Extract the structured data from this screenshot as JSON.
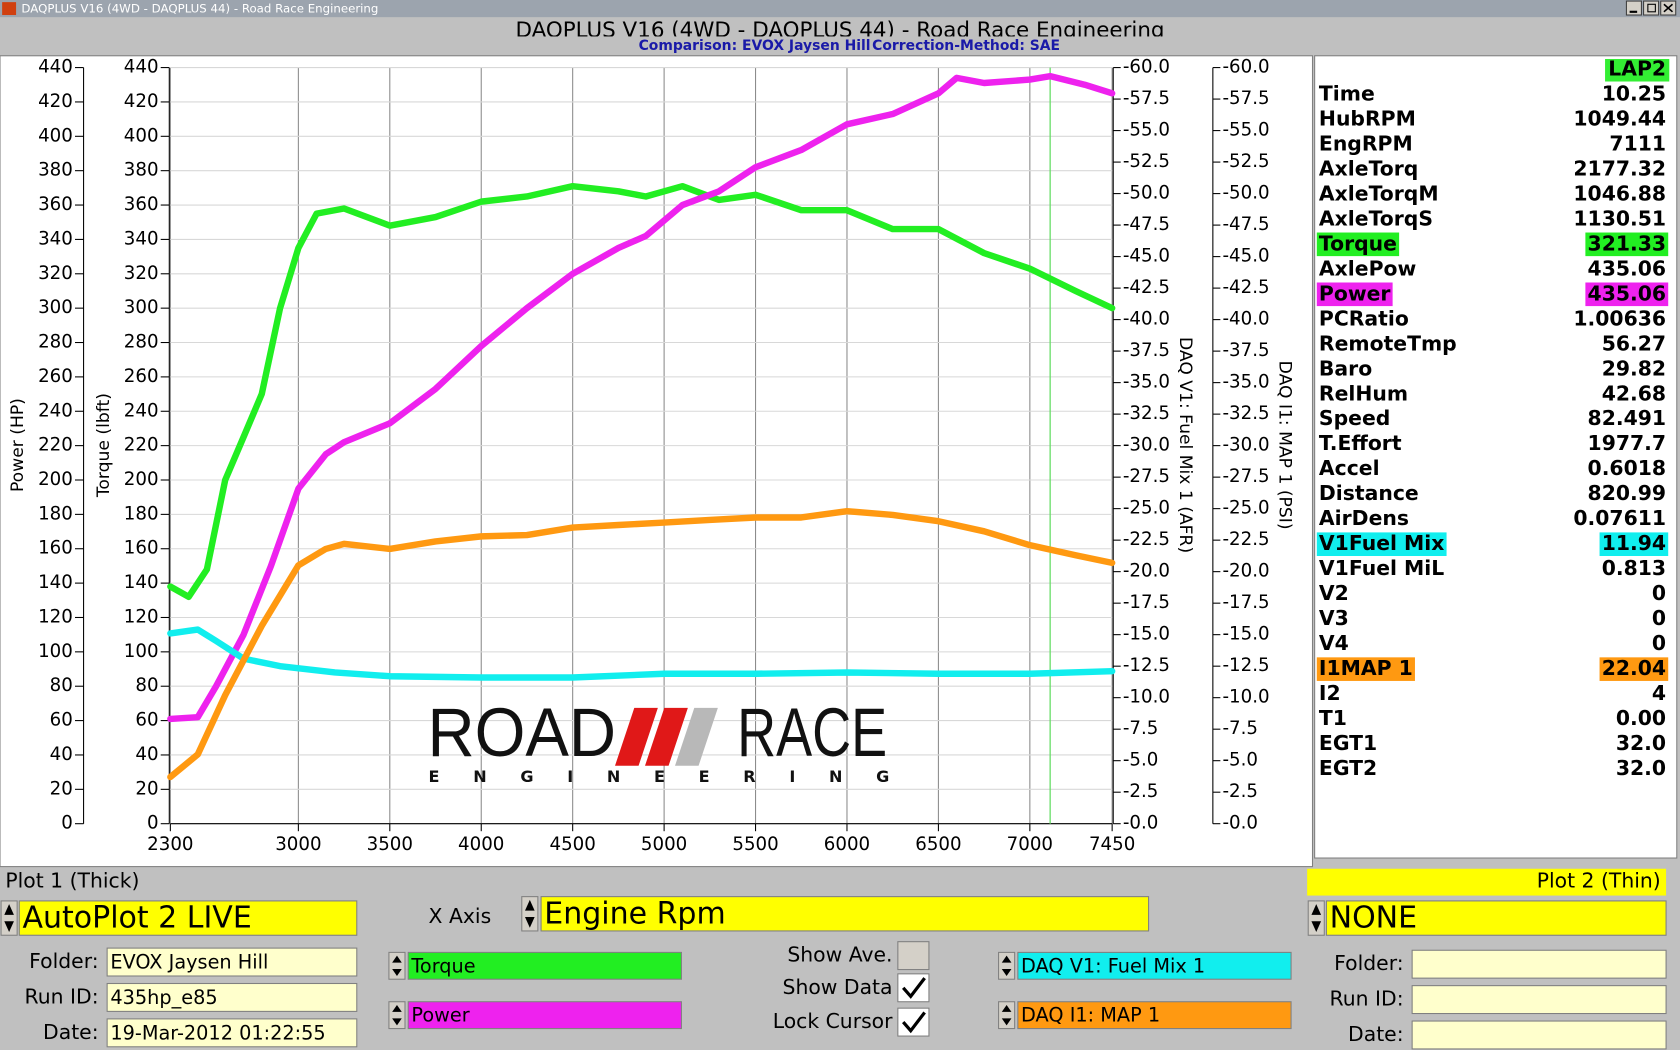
{
  "window_title": "DAQPLUS V16 (4WD - DAQPLUS 44) - Road Race Engineering",
  "header": {
    "title": "DAQPLUS V16 (4WD - DAQPLUS 44) - Road Race Engineering",
    "comparison": "Comparison: EVOX Jaysen Hill",
    "correction": "Correction-Method: SAE"
  },
  "chart_data": {
    "type": "line",
    "xlim": [
      2300,
      7450
    ],
    "xticks": [
      2300,
      3000,
      3500,
      4000,
      4500,
      5000,
      5500,
      6000,
      6500,
      7000,
      7450
    ],
    "grid": true,
    "cursor": 7111,
    "cursor_color": "#66dd66",
    "axes": [
      {
        "label": "Power (HP)",
        "lim": [
          0,
          440
        ],
        "ticks": [
          0,
          20,
          40,
          60,
          80,
          100,
          120,
          140,
          160,
          180,
          200,
          220,
          240,
          260,
          280,
          300,
          320,
          340,
          360,
          380,
          400,
          420,
          440
        ]
      },
      {
        "label": "Torque (lbft)",
        "lim": [
          0,
          440
        ],
        "ticks": [
          0,
          20,
          40,
          60,
          80,
          100,
          120,
          140,
          160,
          180,
          200,
          220,
          240,
          260,
          280,
          300,
          320,
          340,
          360,
          380,
          400,
          420,
          440
        ]
      },
      {
        "label": "DAQ V1: Fuel Mix 1 (AFR)",
        "lim": [
          0,
          -60
        ],
        "ticks": [
          {
            "value": 0,
            "label": "-0.0"
          },
          -2.5,
          {
            "value": -5,
            "label": "-5.0"
          },
          -7.5,
          {
            "value": -10,
            "label": "-10.0"
          },
          -12.5,
          {
            "value": -15,
            "label": "-15.0"
          },
          -17.5,
          {
            "value": -20,
            "label": "-20.0"
          },
          -22.5,
          {
            "value": -25,
            "label": "-25.0"
          },
          -27.5,
          {
            "value": -30,
            "label": "-30.0"
          },
          -32.5,
          {
            "value": -35,
            "label": "-35.0"
          },
          -37.5,
          {
            "value": -40,
            "label": "-40.0"
          },
          -42.5,
          {
            "value": -45,
            "label": "-45.0"
          },
          -47.5,
          {
            "value": -50,
            "label": "-50.0"
          },
          -52.5,
          {
            "value": -55,
            "label": "-55.0"
          },
          -57.5,
          {
            "value": -60,
            "label": "-60.0"
          }
        ]
      },
      {
        "label": "DAQ I1: MAP 1 (PSI)",
        "lim": [
          0,
          -60
        ],
        "ticks": [
          {
            "value": 0,
            "label": "-0.0"
          },
          -2.5,
          {
            "value": -5,
            "label": "-5.0"
          },
          -7.5,
          {
            "value": -10,
            "label": "-10.0"
          },
          -12.5,
          {
            "value": -15,
            "label": "-15.0"
          },
          -17.5,
          {
            "value": -20,
            "label": "-20.0"
          },
          -22.5,
          {
            "value": -25,
            "label": "-25.0"
          },
          -27.5,
          {
            "value": -30,
            "label": "-30.0"
          },
          -32.5,
          {
            "value": -35,
            "label": "-35.0"
          },
          -37.5,
          {
            "value": -40,
            "label": "-40.0"
          },
          -42.5,
          {
            "value": -45,
            "label": "-45.0"
          },
          -47.5,
          {
            "value": -50,
            "label": "-50.0"
          },
          -52.5,
          {
            "value": -55,
            "label": "-55.0"
          },
          -57.5,
          {
            "value": -60,
            "label": "-60.0"
          }
        ]
      }
    ],
    "series": [
      {
        "name": "Torque",
        "color": "#22ee22",
        "axis": 1,
        "x": [
          2300,
          2400,
          2500,
          2600,
          2700,
          2800,
          2900,
          3000,
          3100,
          3250,
          3500,
          3750,
          4000,
          4250,
          4500,
          4750,
          4900,
          5100,
          5300,
          5500,
          5750,
          6000,
          6250,
          6500,
          6750,
          7000,
          7250,
          7450
        ],
        "values": [
          138,
          132,
          148,
          200,
          225,
          250,
          300,
          335,
          355,
          358,
          348,
          353,
          362,
          365,
          371,
          368,
          365,
          371,
          363,
          366,
          357,
          357,
          346,
          346,
          332,
          323,
          310,
          300
        ]
      },
      {
        "name": "Power",
        "color": "#ee22ee",
        "axis": 0,
        "x": [
          2300,
          2450,
          2550,
          2700,
          2850,
          3000,
          3150,
          3250,
          3500,
          3750,
          4000,
          4250,
          4500,
          4750,
          4900,
          5100,
          5300,
          5500,
          5750,
          6000,
          6250,
          6500,
          6600,
          6750,
          7000,
          7111,
          7300,
          7450
        ],
        "values": [
          61,
          62,
          80,
          110,
          150,
          195,
          215,
          222,
          233,
          253,
          278,
          300,
          320,
          335,
          342,
          360,
          368,
          382,
          392,
          407,
          413,
          425,
          434,
          431,
          433,
          435,
          430,
          425
        ]
      },
      {
        "name": "DAQ V1: Fuel Mix 1",
        "color": "#11eeee",
        "axis": 2,
        "x": [
          2300,
          2400,
          2450,
          2550,
          2700,
          2900,
          3200,
          3500,
          4000,
          4500,
          5000,
          5500,
          6000,
          6500,
          7000,
          7450
        ],
        "values": [
          -15.1,
          -15.3,
          -15.4,
          -14.5,
          -13.1,
          -12.5,
          -12.0,
          -11.7,
          -11.6,
          -11.6,
          -11.9,
          -11.9,
          -12.0,
          -11.9,
          -11.9,
          -12.1
        ]
      },
      {
        "name": "DAQ I1: MAP 1",
        "color": "#ff9911",
        "axis": 3,
        "x": [
          2300,
          2450,
          2600,
          2800,
          3000,
          3150,
          3250,
          3500,
          3750,
          4000,
          4250,
          4500,
          4750,
          5000,
          5250,
          5500,
          5750,
          6000,
          6250,
          6500,
          6750,
          7000,
          7250,
          7450
        ],
        "values": [
          -3.7,
          -5.5,
          -10.2,
          -15.7,
          -20.5,
          -21.8,
          -22.2,
          -21.8,
          -22.4,
          -22.8,
          -22.9,
          -23.5,
          -23.7,
          -23.9,
          -24.1,
          -24.3,
          -24.3,
          -24.8,
          -24.5,
          -24.0,
          -23.2,
          -22.1,
          -21.3,
          -20.7
        ]
      }
    ]
  },
  "logo": {
    "left": "ROAD",
    "right": "RACE",
    "sub": "ENGINEERING"
  },
  "readout": {
    "lap": "LAP2",
    "lap_color": "#33ee33",
    "rows": [
      {
        "name": "Time",
        "value": "10.25"
      },
      {
        "name": "HubRPM",
        "value": "1049.44"
      },
      {
        "name": "EngRPM",
        "value": "7111"
      },
      {
        "name": "AxleTorq",
        "value": "2177.32"
      },
      {
        "name": "AxleTorqM",
        "value": "1046.88"
      },
      {
        "name": "AxleTorqS",
        "value": "1130.51"
      },
      {
        "name": "Torque",
        "value": "321.33",
        "color": "#22ee22"
      },
      {
        "name": "AxlePow",
        "value": "435.06"
      },
      {
        "name": "Power",
        "value": "435.06",
        "color": "#ee22ee"
      },
      {
        "name": "PCRatio",
        "value": "1.00636"
      },
      {
        "name": "RemoteTmp",
        "value": "56.27"
      },
      {
        "name": "Baro",
        "value": "29.82"
      },
      {
        "name": "RelHum",
        "value": "42.68"
      },
      {
        "name": "Speed",
        "value": "82.491"
      },
      {
        "name": "T.Effort",
        "value": "1977.7"
      },
      {
        "name": "Accel",
        "value": "0.6018"
      },
      {
        "name": "Distance",
        "value": "820.99"
      },
      {
        "name": "AirDens",
        "value": "0.07611"
      },
      {
        "name": "V1Fuel Mix",
        "value": "11.94",
        "color": "#11eeee"
      },
      {
        "name": "V1Fuel MiL",
        "value": "0.813"
      },
      {
        "name": "V2",
        "value": "0"
      },
      {
        "name": "V3",
        "value": "0"
      },
      {
        "name": "V4",
        "value": "0"
      },
      {
        "name": "I1MAP 1",
        "value": "22.04",
        "color": "#ff9911"
      },
      {
        "name": "I2",
        "value": "4"
      },
      {
        "name": "T1",
        "value": "0.00"
      },
      {
        "name": "EGT1",
        "value": "32.0"
      },
      {
        "name": "EGT2",
        "value": "32.0"
      }
    ]
  },
  "controls": {
    "plot1": {
      "label": "Plot 1 (Thick)",
      "source": "AutoPlot 2 LIVE",
      "folder_label": "Folder:",
      "folder": "EVOX Jaysen Hill",
      "run_label": "Run ID:",
      "run": "435hp_e85",
      "date_label": "Date:",
      "date": "19-Mar-2012 01:22:55"
    },
    "xaxis": {
      "label": "X Axis",
      "value": "Engine Rpm"
    },
    "options": [
      {
        "label": "Show Ave.",
        "checked": false,
        "enabled": false
      },
      {
        "label": "Show Data",
        "checked": true,
        "enabled": true
      },
      {
        "label": "Lock Cursor",
        "checked": true,
        "enabled": true
      }
    ],
    "plot2": {
      "label": "Plot 2 (Thin)",
      "source": "NONE",
      "folder_label": "Folder:",
      "run_label": "Run ID:",
      "date_label": "Date:"
    }
  }
}
